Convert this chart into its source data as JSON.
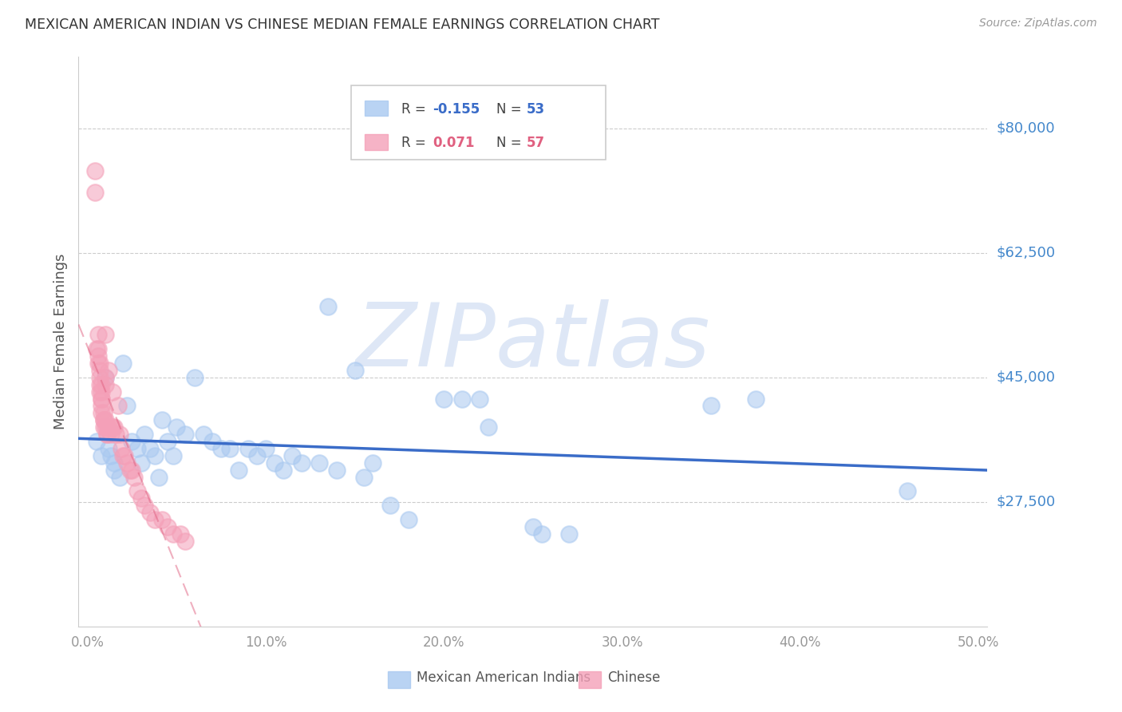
{
  "title": "MEXICAN AMERICAN INDIAN VS CHINESE MEDIAN FEMALE EARNINGS CORRELATION CHART",
  "source": "Source: ZipAtlas.com",
  "ylabel": "Median Female Earnings",
  "xlim": [
    -0.005,
    0.505
  ],
  "ylim": [
    10000,
    90000
  ],
  "yticks": [
    27500,
    45000,
    62500,
    80000
  ],
  "ytick_labels": [
    "$27,500",
    "$45,000",
    "$62,500",
    "$80,000"
  ],
  "xticks": [
    0.0,
    0.1,
    0.2,
    0.3,
    0.4,
    0.5
  ],
  "xtick_labels": [
    "0.0%",
    "10.0%",
    "20.0%",
    "30.0%",
    "40.0%",
    "50.0%"
  ],
  "blue_color": "#A8C8F0",
  "pink_color": "#F4A0B8",
  "blue_line_color": "#3A6CC8",
  "pink_line_color": "#E06080",
  "watermark": "ZIPatlas",
  "watermark_color": "#C8D8F0",
  "title_color": "#333333",
  "ytick_color": "#4488CC",
  "grid_color": "#CCCCCC",
  "legend_blue_r": "-0.155",
  "legend_blue_n": "53",
  "legend_pink_r": "0.071",
  "legend_pink_n": "57",
  "bottom_legend_labels": [
    "Mexican American Indians",
    "Chinese"
  ],
  "blue_scatter_x": [
    0.005,
    0.008,
    0.01,
    0.012,
    0.013,
    0.015,
    0.015,
    0.018,
    0.02,
    0.022,
    0.025,
    0.028,
    0.03,
    0.032,
    0.035,
    0.038,
    0.04,
    0.042,
    0.045,
    0.048,
    0.05,
    0.055,
    0.06,
    0.065,
    0.07,
    0.075,
    0.08,
    0.085,
    0.09,
    0.095,
    0.1,
    0.105,
    0.11,
    0.115,
    0.12,
    0.13,
    0.135,
    0.14,
    0.15,
    0.155,
    0.16,
    0.17,
    0.18,
    0.2,
    0.21,
    0.22,
    0.225,
    0.25,
    0.255,
    0.27,
    0.35,
    0.375,
    0.46
  ],
  "blue_scatter_y": [
    36000,
    34000,
    45000,
    35000,
    34000,
    33000,
    32000,
    31000,
    47000,
    41000,
    36000,
    35000,
    33000,
    37000,
    35000,
    34000,
    31000,
    39000,
    36000,
    34000,
    38000,
    37000,
    45000,
    37000,
    36000,
    35000,
    35000,
    32000,
    35000,
    34000,
    35000,
    33000,
    32000,
    34000,
    33000,
    33000,
    55000,
    32000,
    46000,
    31000,
    33000,
    27000,
    25000,
    42000,
    42000,
    42000,
    38000,
    24000,
    23000,
    23000,
    41000,
    42000,
    29000
  ],
  "pink_scatter_x": [
    0.004,
    0.004,
    0.005,
    0.006,
    0.006,
    0.006,
    0.006,
    0.007,
    0.007,
    0.007,
    0.007,
    0.007,
    0.008,
    0.008,
    0.008,
    0.008,
    0.008,
    0.008,
    0.009,
    0.009,
    0.009,
    0.009,
    0.01,
    0.01,
    0.01,
    0.01,
    0.01,
    0.011,
    0.011,
    0.011,
    0.012,
    0.012,
    0.013,
    0.013,
    0.014,
    0.014,
    0.015,
    0.016,
    0.017,
    0.018,
    0.019,
    0.02,
    0.021,
    0.022,
    0.024,
    0.025,
    0.026,
    0.028,
    0.03,
    0.032,
    0.035,
    0.038,
    0.042,
    0.045,
    0.048,
    0.052,
    0.055
  ],
  "pink_scatter_y": [
    74000,
    71000,
    49000,
    51000,
    49000,
    48000,
    47000,
    47000,
    46000,
    45000,
    44000,
    43000,
    44000,
    43000,
    42000,
    42000,
    41000,
    40000,
    40000,
    39000,
    39000,
    38000,
    51000,
    45000,
    44000,
    39000,
    38000,
    38000,
    37000,
    37000,
    46000,
    38000,
    38000,
    37000,
    43000,
    38000,
    38000,
    37000,
    41000,
    37000,
    35000,
    34000,
    34000,
    33000,
    32000,
    32000,
    31000,
    29000,
    28000,
    27000,
    26000,
    25000,
    25000,
    24000,
    23000,
    23000,
    22000
  ],
  "figsize": [
    14.06,
    8.92
  ],
  "dpi": 100
}
